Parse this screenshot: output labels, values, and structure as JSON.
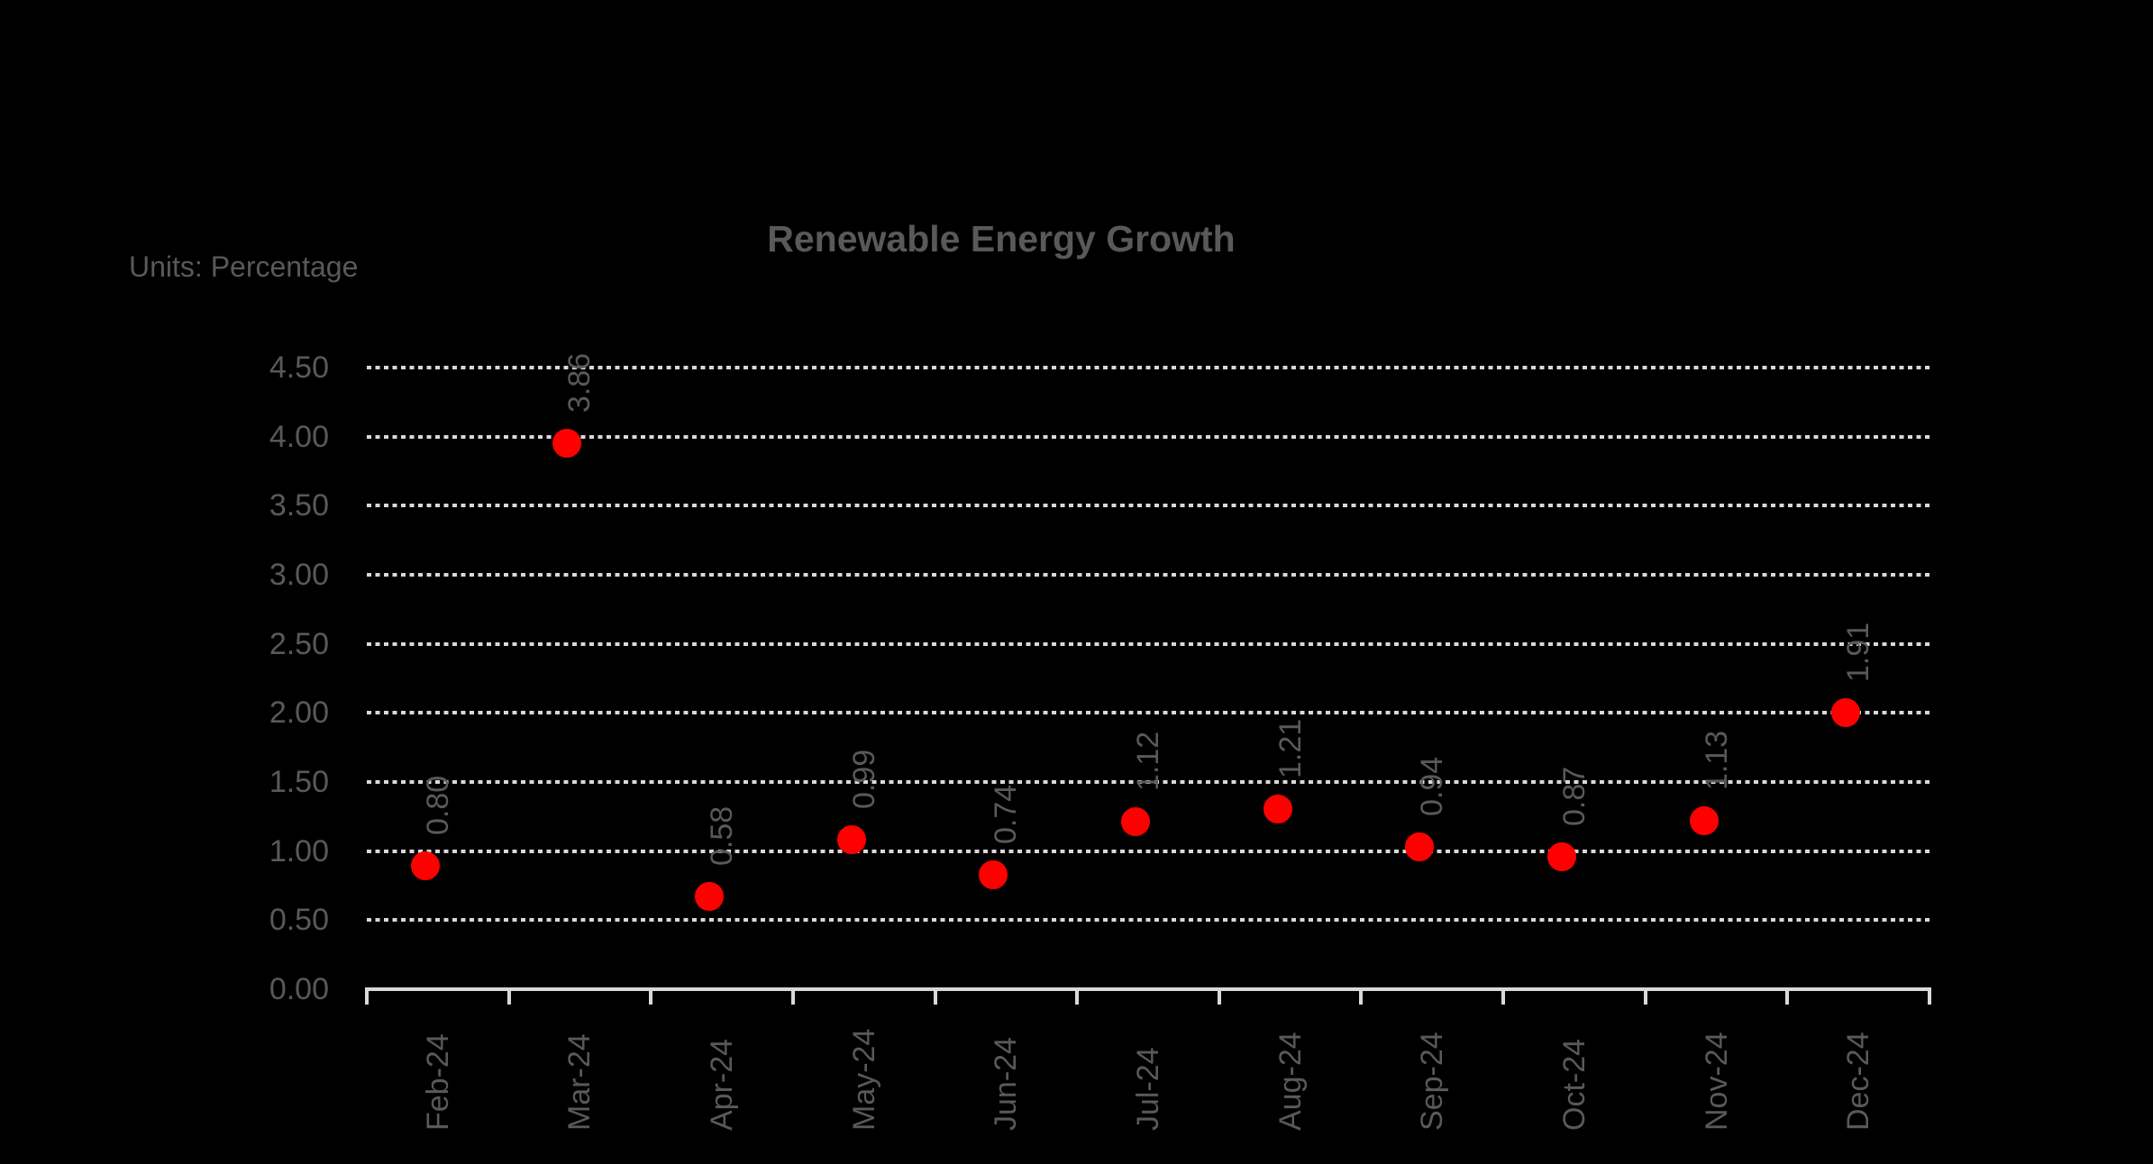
{
  "header": {
    "title": "Renewable Energy Growth",
    "units_label": "Units: Percentage"
  },
  "chart_data": {
    "type": "scatter",
    "title": "Renewable Energy Growth",
    "units": "Percentage",
    "categories": [
      "Feb-24",
      "Mar-24",
      "Apr-24",
      "May-24",
      "Jun-24",
      "Jul-24",
      "Aug-24",
      "Sep-24",
      "Oct-24",
      "Nov-24",
      "Dec-24"
    ],
    "series": [
      {
        "name": "Renewable Energy Growth",
        "values": [
          0.8,
          3.86,
          0.58,
          0.99,
          0.74,
          1.12,
          1.21,
          0.94,
          0.87,
          1.13,
          1.91
        ]
      }
    ],
    "data_label_format": "0.00",
    "data_labels": [
      "0.80",
      "3.86",
      "0.58",
      "0.99",
      "0.74",
      "1.12",
      "1.21",
      "0.94",
      "0.87",
      "1.13",
      "1.91"
    ],
    "xlabel": "",
    "ylabel": "",
    "y_axis": {
      "min": 0.0,
      "max": 4.5,
      "step": 0.5,
      "tick_labels": [
        "0.00",
        "0.50",
        "1.00",
        "1.50",
        "2.00",
        "2.50",
        "3.00",
        "3.50",
        "4.00",
        "4.50"
      ]
    },
    "x_tick_label_rotation_deg": 90,
    "grid": "horizontal-dotted",
    "legend": "none",
    "colors": {
      "background": "#000000",
      "marker": "#ff0000",
      "text": "#595959",
      "gridline": "#d9d9d9",
      "axis_line": "#d9d9d9"
    }
  }
}
